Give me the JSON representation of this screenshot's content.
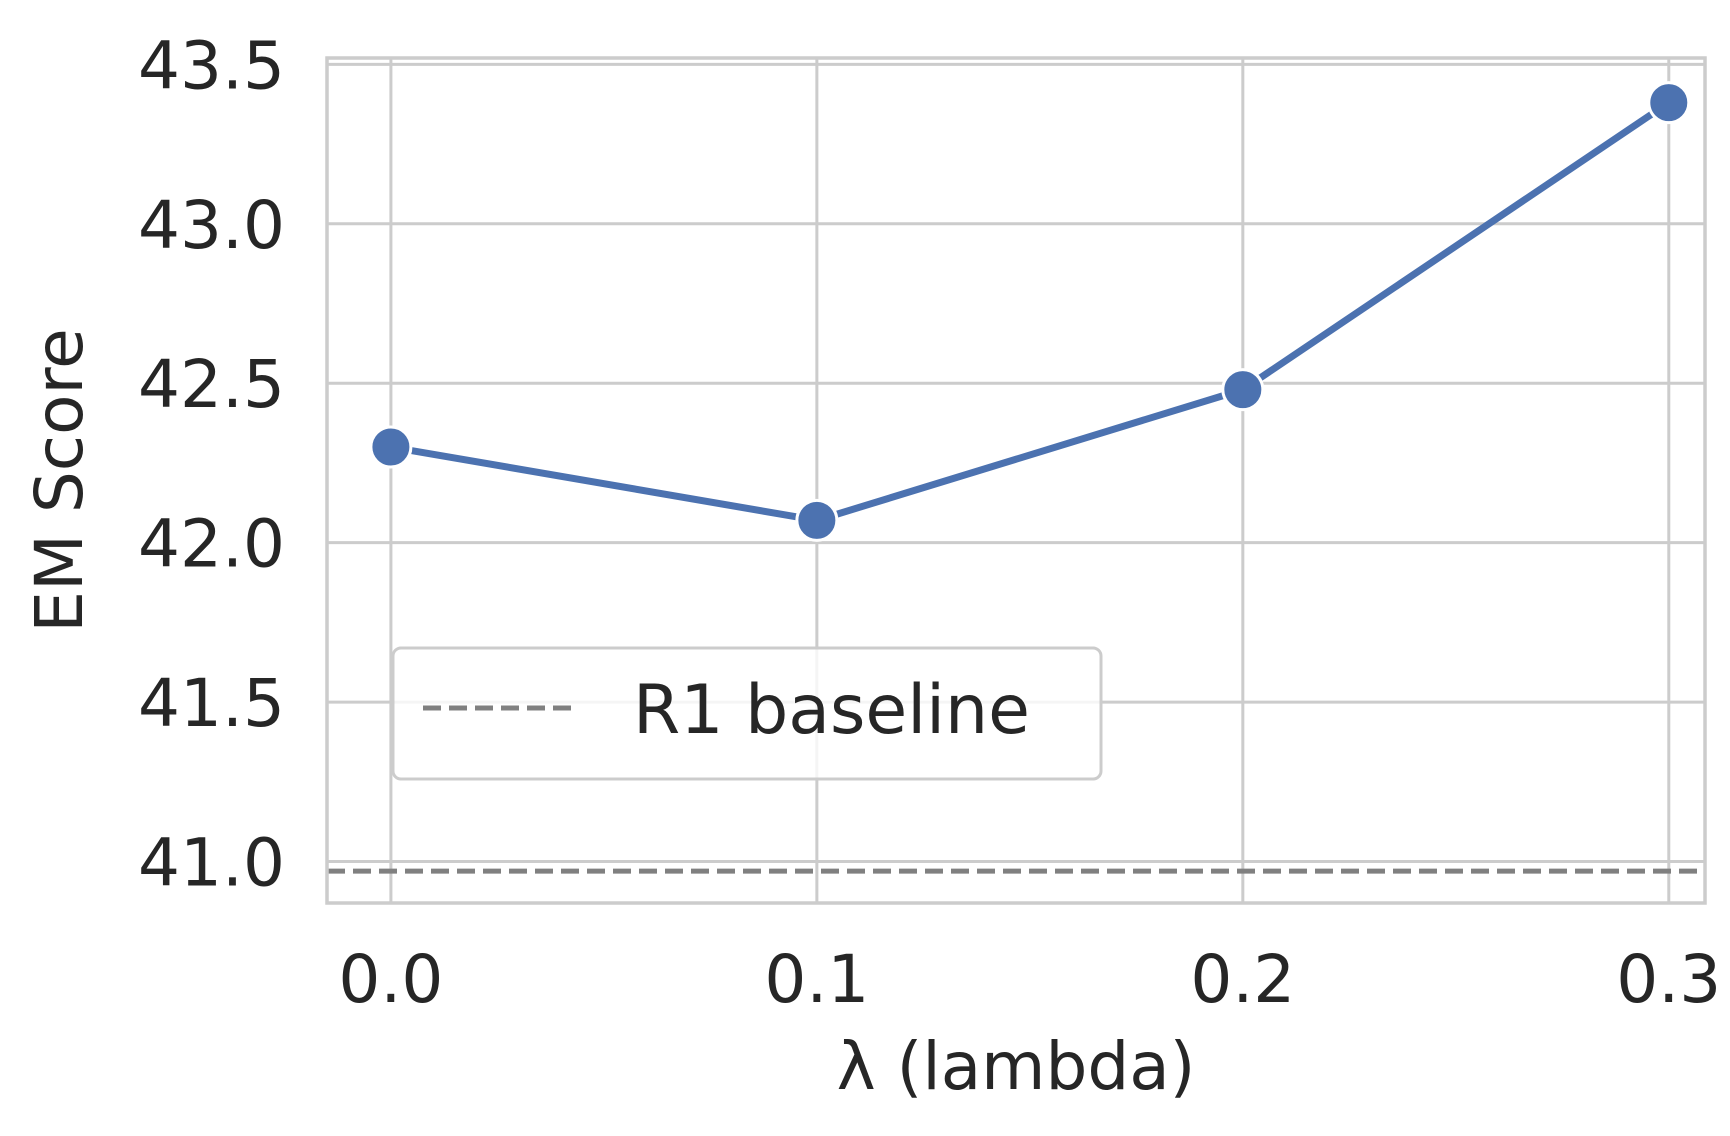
{
  "chart_data": {
    "type": "line",
    "title": "",
    "xlabel": "λ (lambda)",
    "ylabel": "EM Score",
    "x": [
      0.0,
      0.1,
      0.2,
      0.3
    ],
    "xticks": [
      "0.0",
      "0.1",
      "0.2",
      "0.3"
    ],
    "xlim": [
      -0.015,
      0.3085
    ],
    "ylim": [
      40.87,
      43.52
    ],
    "yticks": [
      "41.0",
      "41.5",
      "42.0",
      "42.5",
      "43.0",
      "43.5"
    ],
    "series": [
      {
        "values": [
          42.3,
          42.07,
          42.48,
          43.38
        ],
        "color": "#4c72b0",
        "marker": "circle"
      }
    ],
    "reference_lines": [
      {
        "name": "R1 baseline",
        "y": 40.97,
        "color": "#808080",
        "style": "dashed"
      }
    ],
    "legend": {
      "position": "lower-left",
      "entries": [
        "R1 baseline"
      ]
    },
    "grid": true
  }
}
